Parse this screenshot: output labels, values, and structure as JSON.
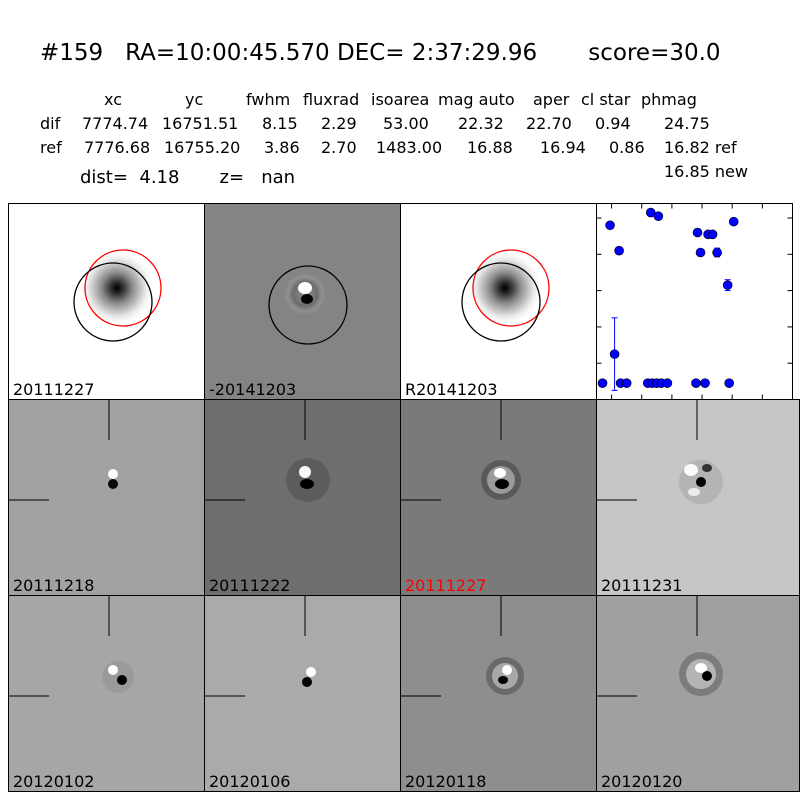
{
  "header": {
    "title": "#159   RA=10:00:45.570 DEC= 2:37:29.96       score=30.0",
    "columns": [
      "xc",
      "yc",
      "fwhm",
      "fluxrad",
      "isoarea",
      "mag auto",
      "aper",
      "cl star",
      "phmag"
    ],
    "rows": [
      {
        "label": "dif",
        "values": [
          "7774.74",
          "16751.51",
          "8.15",
          "2.29",
          "53.00",
          "22.32",
          "22.70",
          "0.94",
          "24.75"
        ]
      },
      {
        "label": "ref",
        "values": [
          "7776.68",
          "16755.20",
          "3.86",
          "2.70",
          "1483.00",
          "16.88",
          "16.94",
          "0.86",
          "16.82 ref"
        ]
      }
    ],
    "extra_phmag": "16.85 new",
    "dist_line": "dist=  4.18       z=   nan"
  },
  "panels": [
    {
      "label": "20111227",
      "kind": "ref",
      "label_color": "#000000"
    },
    {
      "label": "-20141203",
      "kind": "diff",
      "label_color": "#000000"
    },
    {
      "label": "R20141203",
      "kind": "ref",
      "label_color": "#000000"
    },
    {
      "label": "20111218",
      "kind": "epoch",
      "label_color": "#000000"
    },
    {
      "label": "20111222",
      "kind": "epoch",
      "label_color": "#000000"
    },
    {
      "label": "20111227",
      "kind": "epoch",
      "label_color": "#ff0000"
    },
    {
      "label": "20111231",
      "kind": "epoch",
      "label_color": "#000000"
    },
    {
      "label": "20120102",
      "kind": "epoch",
      "label_color": "#000000"
    },
    {
      "label": "20120106",
      "kind": "epoch",
      "label_color": "#000000"
    },
    {
      "label": "20120118",
      "kind": "epoch",
      "label_color": "#000000"
    },
    {
      "label": "20120120",
      "kind": "epoch",
      "label_color": "#000000"
    }
  ],
  "chart_data": {
    "type": "scatter",
    "xlim": [
      -10,
      120
    ],
    "ylim": [
      26,
      20.6
    ],
    "y_inverted": true,
    "xticks": [
      0,
      20,
      40,
      60,
      80,
      100,
      120
    ],
    "yticks": [
      21,
      22,
      23,
      24,
      25,
      26
    ],
    "marker_color": "#0000ff",
    "points": [
      {
        "x": -6,
        "y": 25.55
      },
      {
        "x": -1,
        "y": 21.2
      },
      {
        "x": 2,
        "y": 24.75,
        "err": 1.0
      },
      {
        "x": 5,
        "y": 21.9
      },
      {
        "x": 6,
        "y": 25.55
      },
      {
        "x": 10,
        "y": 25.55
      },
      {
        "x": 24,
        "y": 25.55
      },
      {
        "x": 26,
        "y": 20.85
      },
      {
        "x": 27,
        "y": 25.55
      },
      {
        "x": 30,
        "y": 25.55
      },
      {
        "x": 31,
        "y": 20.95
      },
      {
        "x": 33,
        "y": 25.55
      },
      {
        "x": 37,
        "y": 25.55
      },
      {
        "x": 56,
        "y": 25.55
      },
      {
        "x": 57,
        "y": 21.4
      },
      {
        "x": 59,
        "y": 21.95
      },
      {
        "x": 62,
        "y": 25.55
      },
      {
        "x": 64,
        "y": 21.45
      },
      {
        "x": 67,
        "y": 21.45
      },
      {
        "x": 70,
        "y": 21.95,
        "err": 0.12
      },
      {
        "x": 77,
        "y": 22.85,
        "err": 0.15
      },
      {
        "x": 78,
        "y": 25.55
      },
      {
        "x": 81,
        "y": 21.1
      }
    ]
  }
}
